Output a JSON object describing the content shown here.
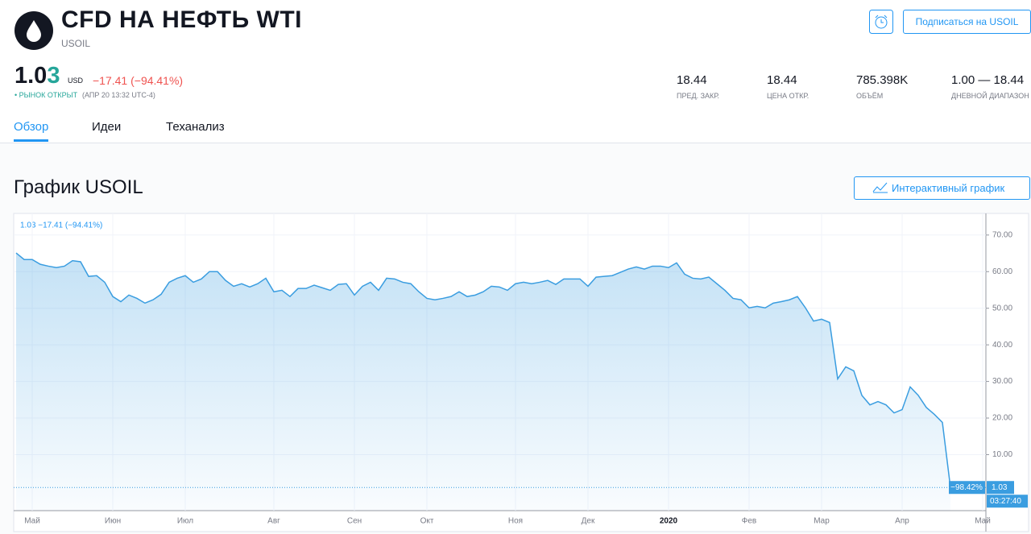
{
  "header": {
    "title": "CFD НА НЕФТЬ WTI",
    "ticker": "USOIL",
    "subscribe_button": "Подписаться на USOIL"
  },
  "quote": {
    "price_parts": [
      "1.0",
      "3"
    ],
    "currency": "USD",
    "change": "−17.41 (−94.41%)",
    "market_status": "• РЫНОК ОТКРЫТ",
    "time": "(АПР 20 13:32 UTC-4)"
  },
  "stats": [
    {
      "value": "18.44",
      "label": "ПРЕД. ЗАКР."
    },
    {
      "value": "18.44",
      "label": "ЦЕНА ОТКР."
    },
    {
      "value": "785.398K",
      "label": "ОБЪЁМ"
    },
    {
      "value": "1.00 — 18.44",
      "label": "ДНЕВНОЙ ДИАПАЗОН"
    }
  ],
  "tabs": [
    "Обзор",
    "Идеи",
    "Теханализ"
  ],
  "section": {
    "title": "График USOIL",
    "button": "Интерактивный график"
  },
  "chart_data": {
    "type": "line",
    "legend_text": "1.03 −17.41 (−94.41%)",
    "last_change_label": "−98.42%",
    "last_price_label": "1.03",
    "countdown_label": "03:27:40",
    "color": "#3a9de0",
    "categories": [
      null,
      null,
      "Май",
      null,
      null,
      null,
      null,
      null,
      null,
      null,
      null,
      null,
      "Июн",
      null,
      null,
      null,
      null,
      null,
      null,
      null,
      null,
      "Июл",
      null,
      null,
      null,
      null,
      null,
      null,
      null,
      null,
      null,
      null,
      "Авг",
      null,
      null,
      null,
      null,
      null,
      null,
      null,
      null,
      null,
      "Сен",
      null,
      null,
      null,
      null,
      null,
      null,
      null,
      null,
      "Окт",
      null,
      null,
      null,
      null,
      null,
      null,
      null,
      null,
      null,
      null,
      "Ноя",
      null,
      null,
      null,
      null,
      null,
      null,
      null,
      null,
      "Дек",
      null,
      null,
      null,
      null,
      null,
      null,
      null,
      null,
      null,
      "2020",
      null,
      null,
      null,
      null,
      null,
      null,
      null,
      null,
      null,
      "Фев",
      null,
      null,
      null,
      null,
      null,
      null,
      null,
      null,
      "Мар",
      null,
      null,
      null,
      null,
      null,
      null,
      null,
      null,
      null,
      "Апр",
      null,
      null,
      null,
      null,
      null,
      null,
      null,
      null,
      null,
      "Май"
    ],
    "values": [
      65.1,
      63.3,
      63.3,
      62,
      61.5,
      61.1,
      61.5,
      63,
      62.7,
      58.7,
      58.9,
      57.1,
      53.2,
      51.8,
      53.6,
      52.7,
      51.4,
      52.3,
      53.8,
      57.1,
      58.2,
      58.9,
      57.1,
      58,
      60,
      60,
      57.6,
      56,
      56.7,
      55.8,
      56.7,
      58.2,
      54.5,
      54.9,
      53.2,
      55.4,
      55.4,
      56.3,
      55.6,
      54.9,
      56.5,
      56.7,
      53.6,
      56,
      57.1,
      54.9,
      58.2,
      58,
      57.1,
      56.7,
      54.5,
      52.7,
      52.3,
      52.7,
      53.2,
      54.5,
      53.2,
      53.6,
      54.5,
      56,
      55.8,
      54.9,
      56.7,
      57.1,
      56.7,
      57.1,
      57.6,
      56.5,
      58,
      58,
      58,
      56,
      58.5,
      58.7,
      58.9,
      59.8,
      60.7,
      61.3,
      60.7,
      61.5,
      61.5,
      61.1,
      62.4,
      59.3,
      58.2,
      58,
      58.5,
      56.7,
      54.9,
      52.7,
      52.3,
      50.1,
      50.5,
      50.1,
      51.4,
      51.8,
      52.3,
      53.2,
      50.1,
      46.5,
      47,
      46.1,
      30.7,
      34,
      32.9,
      26.2,
      23.6,
      24.5,
      23.6,
      21.4,
      22.3,
      28.5,
      26.2,
      22.9,
      21,
      18.8,
      1.03,
      null,
      null,
      null,
      null
    ],
    "ylim": [
      -5.3,
      75.9
    ],
    "yticks": [
      {
        "value": 10,
        "label": "10.00"
      },
      {
        "value": 20,
        "label": "20.00"
      },
      {
        "value": 30,
        "label": "30.00"
      },
      {
        "value": 40,
        "label": "40.00"
      },
      {
        "value": 50,
        "label": "50.00"
      },
      {
        "value": 60,
        "label": "60.00"
      },
      {
        "value": 70,
        "label": "70.00"
      }
    ],
    "grid": true
  }
}
